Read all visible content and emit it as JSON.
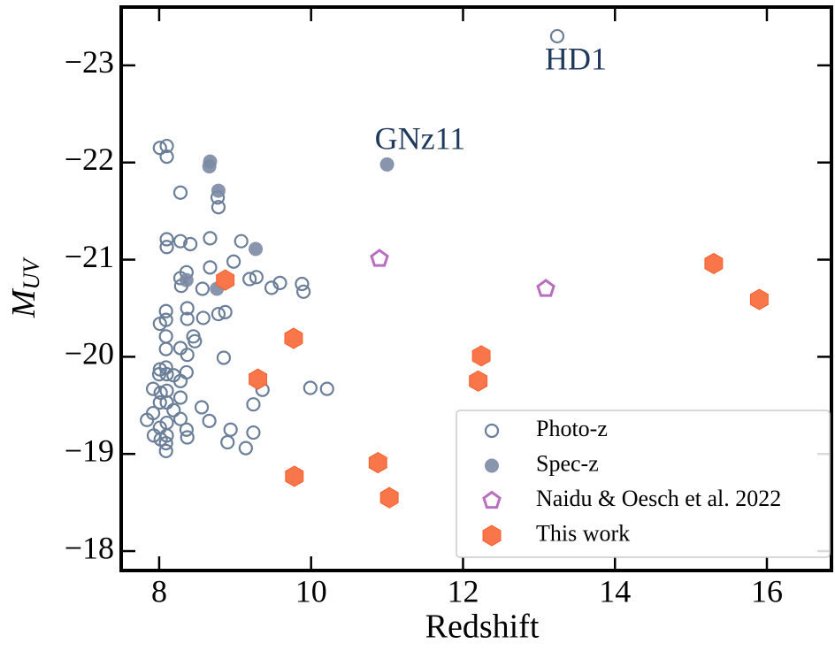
{
  "chart_data": {
    "type": "scatter",
    "xlabel": "Redshift",
    "ylabel": "M",
    "ylabel_subscript": "UV",
    "xlim": [
      7.5,
      16.85
    ],
    "ylim": [
      -17.8,
      -23.6
    ],
    "xticks": [
      8,
      10,
      12,
      14,
      16
    ],
    "yticks": [
      {
        "value": -23,
        "label": "−23"
      },
      {
        "value": -22,
        "label": "−22"
      },
      {
        "value": -21,
        "label": "−21"
      },
      {
        "value": -20,
        "label": "−20"
      },
      {
        "value": -19,
        "label": "−19"
      },
      {
        "value": -18,
        "label": "−18"
      }
    ],
    "legend": "lower right",
    "annotations": [
      "HD1",
      "GNz11"
    ],
    "series": [
      {
        "name": "Photo-z",
        "marker": "open-circle",
        "color": "#6b7f99",
        "x": [
          13.24,
          8.01,
          8.1,
          8.1,
          8.28,
          8.77,
          8.78,
          8.67,
          9.08,
          8.1,
          8.1,
          8.28,
          8.41,
          8.36,
          8.28,
          8.29,
          8.67,
          8.98,
          8.57,
          9.19,
          9.28,
          9.48,
          9.59,
          9.88,
          9.9,
          8.09,
          8.09,
          8.01,
          8.09,
          8.37,
          8.37,
          8.58,
          8.87,
          8.78,
          8.45,
          8.47,
          8.09,
          8.28,
          8.37,
          8.85,
          8.01,
          8.09,
          8.0,
          8.1,
          8.19,
          8.36,
          8.28,
          7.92,
          8.02,
          8.1,
          8.01,
          8.1,
          8.28,
          9.36,
          9.99,
          10.21,
          9.24,
          8.56,
          7.92,
          8.19,
          7.84,
          8.1,
          8.28,
          8.66,
          8.01,
          8.1,
          7.93,
          8.02,
          8.36,
          8.37,
          8.94,
          9.24,
          8.09,
          8.09,
          8.9,
          9.14
        ],
        "values": [
          -23.3,
          -22.15,
          -22.17,
          -22.06,
          -21.69,
          -21.64,
          -21.54,
          -21.22,
          -21.19,
          -21.21,
          -21.13,
          -21.19,
          -21.16,
          -20.87,
          -20.81,
          -20.73,
          -20.92,
          -20.98,
          -20.7,
          -20.8,
          -20.82,
          -20.71,
          -20.76,
          -20.75,
          -20.67,
          -20.47,
          -20.38,
          -20.34,
          -20.21,
          -20.5,
          -20.39,
          -20.4,
          -20.46,
          -20.44,
          -20.21,
          -20.16,
          -20.08,
          -20.09,
          -20.02,
          -19.99,
          -19.87,
          -19.89,
          -19.82,
          -19.82,
          -19.81,
          -19.84,
          -19.75,
          -19.67,
          -19.63,
          -19.65,
          -19.53,
          -19.53,
          -19.58,
          -19.66,
          -19.68,
          -19.67,
          -19.51,
          -19.48,
          -19.42,
          -19.45,
          -19.35,
          -19.32,
          -19.36,
          -19.34,
          -19.27,
          -19.19,
          -19.19,
          -19.15,
          -19.25,
          -19.17,
          -19.25,
          -19.22,
          -19.11,
          -19.03,
          -19.12,
          -19.06
        ]
      },
      {
        "name": "Spec-z",
        "marker": "circle",
        "color": "#7b8aa3",
        "x": [
          11.0,
          8.67,
          8.66,
          8.78,
          9.27,
          8.36,
          8.76
        ],
        "values": [
          -21.98,
          -22.01,
          -21.96,
          -21.71,
          -21.11,
          -20.79,
          -20.7
        ]
      },
      {
        "name": "Naidu & Oesch et al. 2022",
        "marker": "pentagon",
        "color": "#b86fc0",
        "x": [
          10.9,
          13.09
        ],
        "values": [
          -21.01,
          -20.7
        ]
      },
      {
        "name": "This work",
        "marker": "hexagon",
        "color": "#f8764a",
        "x": [
          8.87,
          9.77,
          9.3,
          9.78,
          10.88,
          11.03,
          12.24,
          12.2,
          15.3,
          15.9
        ],
        "values": [
          -20.79,
          -20.19,
          -19.77,
          -18.77,
          -18.91,
          -18.55,
          -20.01,
          -19.75,
          -20.96,
          -20.59
        ]
      }
    ]
  }
}
